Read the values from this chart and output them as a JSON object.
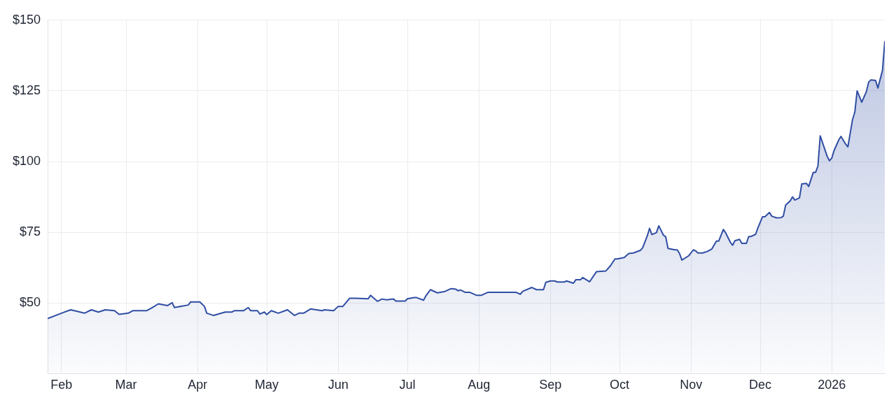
{
  "chart_data": {
    "type": "area",
    "x": [
      "2025-01-26",
      "2025-02-02",
      "2025-02-05",
      "2025-02-11",
      "2025-02-14",
      "2025-02-17",
      "2025-02-20",
      "2025-02-24",
      "2025-02-26",
      "2025-03-02",
      "2025-03-04",
      "2025-03-10",
      "2025-03-12",
      "2025-03-15",
      "2025-03-19",
      "2025-03-21",
      "2025-03-22",
      "2025-03-28",
      "2025-03-29",
      "2025-04-02",
      "2025-04-04",
      "2025-04-05",
      "2025-04-08",
      "2025-04-13",
      "2025-04-16",
      "2025-04-17",
      "2025-04-21",
      "2025-04-23",
      "2025-04-24",
      "2025-04-27",
      "2025-04-28",
      "2025-04-30",
      "2025-05-01",
      "2025-05-03",
      "2025-05-06",
      "2025-05-10",
      "2025-05-13",
      "2025-05-15",
      "2025-05-17",
      "2025-05-20",
      "2025-05-25",
      "2025-05-26",
      "2025-05-30",
      "2025-06-01",
      "2025-06-03",
      "2025-06-06",
      "2025-06-08",
      "2025-06-14",
      "2025-06-15",
      "2025-06-17",
      "2025-06-18",
      "2025-06-20",
      "2025-06-22",
      "2025-06-25",
      "2025-06-26",
      "2025-06-30",
      "2025-07-01",
      "2025-07-04",
      "2025-07-05",
      "2025-07-08",
      "2025-07-09",
      "2025-07-11",
      "2025-07-14",
      "2025-07-17",
      "2025-07-20",
      "2025-07-22",
      "2025-07-23",
      "2025-07-24",
      "2025-07-26",
      "2025-07-28",
      "2025-07-31",
      "2025-08-02",
      "2025-08-05",
      "2025-08-17",
      "2025-08-19",
      "2025-08-20",
      "2025-08-24",
      "2025-08-26",
      "2025-08-29",
      "2025-08-30",
      "2025-09-01",
      "2025-09-03",
      "2025-09-04",
      "2025-09-07",
      "2025-09-08",
      "2025-09-11",
      "2025-09-12",
      "2025-09-14",
      "2025-09-15",
      "2025-09-18",
      "2025-09-21",
      "2025-09-25",
      "2025-09-27",
      "2025-09-29",
      "2025-09-30",
      "2025-10-03",
      "2025-10-05",
      "2025-10-07",
      "2025-10-10",
      "2025-10-11",
      "2025-10-13",
      "2025-10-14",
      "2025-10-15",
      "2025-10-17",
      "2025-10-18",
      "2025-10-20",
      "2025-10-21",
      "2025-10-22",
      "2025-10-25",
      "2025-10-26",
      "2025-10-27",
      "2025-10-28",
      "2025-10-31",
      "2025-11-02",
      "2025-11-03",
      "2025-11-04",
      "2025-11-06",
      "2025-11-08",
      "2025-11-10",
      "2025-11-12",
      "2025-11-13",
      "2025-11-15",
      "2025-11-16",
      "2025-11-18",
      "2025-11-19",
      "2025-11-20",
      "2025-11-22",
      "2025-11-23",
      "2025-11-25",
      "2025-11-26",
      "2025-11-27",
      "2025-11-29",
      "2025-11-30",
      "2025-12-02",
      "2025-12-03",
      "2025-12-05",
      "2025-12-06",
      "2025-12-08",
      "2025-12-10",
      "2025-12-11",
      "2025-12-12",
      "2025-12-14",
      "2025-12-15",
      "2025-12-16",
      "2025-12-18",
      "2025-12-19",
      "2025-12-21",
      "2025-12-22",
      "2025-12-24",
      "2025-12-25",
      "2025-12-26",
      "2025-12-27",
      "2025-12-30",
      "2025-12-31",
      "2026-01-01",
      "2026-01-02",
      "2026-01-04",
      "2026-01-05",
      "2026-01-07",
      "2026-01-08",
      "2026-01-10",
      "2026-01-11",
      "2026-01-12",
      "2026-01-14",
      "2026-01-16",
      "2026-01-17",
      "2026-01-18",
      "2026-01-20",
      "2026-01-21",
      "2026-01-23",
      "2026-01-24"
    ],
    "series": [
      {
        "color": "#2f4da3",
        "values": [
          44.5,
          46.7,
          47.6,
          46.4,
          47.6,
          46.8,
          47.6,
          47.3,
          46,
          46.4,
          47.3,
          47.3,
          48.2,
          49.7,
          49.1,
          50.1,
          48.4,
          49.3,
          50.4,
          50.4,
          48.8,
          46.4,
          45.6,
          46.8,
          46.8,
          47.3,
          47.3,
          48.4,
          47.3,
          47.3,
          46.1,
          46.8,
          45.9,
          47.3,
          46.4,
          47.6,
          45.6,
          46.4,
          46.4,
          47.9,
          47.3,
          47.6,
          47.3,
          48.8,
          48.8,
          51.7,
          51.7,
          51.5,
          52.7,
          51.3,
          50.6,
          51.4,
          51.1,
          51.4,
          50.7,
          50.7,
          51.5,
          51.9,
          51.9,
          51,
          52.5,
          54.7,
          53.6,
          54,
          55.1,
          54.9,
          54.3,
          54.6,
          53.8,
          53.8,
          52.7,
          52.7,
          53.8,
          53.8,
          53.1,
          54.1,
          55.5,
          54.7,
          54.7,
          57.3,
          57.8,
          57.8,
          57.4,
          57.4,
          57.8,
          57,
          58.2,
          58.2,
          59,
          57.5,
          61.1,
          61.3,
          63.1,
          65.6,
          65.6,
          66.1,
          67.5,
          67.7,
          68.6,
          69.5,
          73.7,
          76.4,
          74.2,
          74.9,
          77.3,
          74,
          73.4,
          69.3,
          68.8,
          68.8,
          67.5,
          65.2,
          66.7,
          68.8,
          68.4,
          67.7,
          67.7,
          68.2,
          69.1,
          71.9,
          71.9,
          76,
          74.8,
          71.5,
          70.4,
          72,
          72.5,
          71.1,
          71.1,
          73.5,
          73.5,
          74.3,
          76.6,
          80.5,
          80.5,
          82,
          80.7,
          80.1,
          80.2,
          80.7,
          84.6,
          86.1,
          87.5,
          86.4,
          87.2,
          92.1,
          92.3,
          91.2,
          96.2,
          96.2,
          98.4,
          109.1,
          101.9,
          100.3,
          101.2,
          103.9,
          107.6,
          108.9,
          106.2,
          105.2,
          114.8,
          117.5,
          125,
          121,
          124.7,
          128.1,
          128.9,
          128.7,
          126,
          132.3,
          142.6
        ]
      }
    ],
    "xlim": [
      "2025-01-26",
      "2026-01-24"
    ],
    "xticks": [
      {
        "value": "2025-02-01",
        "label": "Feb"
      },
      {
        "value": "2025-03-01",
        "label": "Mar"
      },
      {
        "value": "2025-04-01",
        "label": "Apr"
      },
      {
        "value": "2025-05-01",
        "label": "May"
      },
      {
        "value": "2025-06-01",
        "label": "Jun"
      },
      {
        "value": "2025-07-01",
        "label": "Jul"
      },
      {
        "value": "2025-08-01",
        "label": "Aug"
      },
      {
        "value": "2025-09-01",
        "label": "Sep"
      },
      {
        "value": "2025-10-01",
        "label": "Oct"
      },
      {
        "value": "2025-11-01",
        "label": "Nov"
      },
      {
        "value": "2025-12-01",
        "label": "Dec"
      },
      {
        "value": "2026-01-01",
        "label": "2026"
      }
    ],
    "ylim": [
      25,
      150
    ],
    "yticks": [
      {
        "value": 50,
        "label": "$50"
      },
      {
        "value": 75,
        "label": "$75"
      },
      {
        "value": 100,
        "label": "$100"
      },
      {
        "value": 125,
        "label": "$125"
      },
      {
        "value": 150,
        "label": "$150"
      }
    ],
    "grid": true,
    "legend": false,
    "marker": "none",
    "line_style": "solid"
  }
}
